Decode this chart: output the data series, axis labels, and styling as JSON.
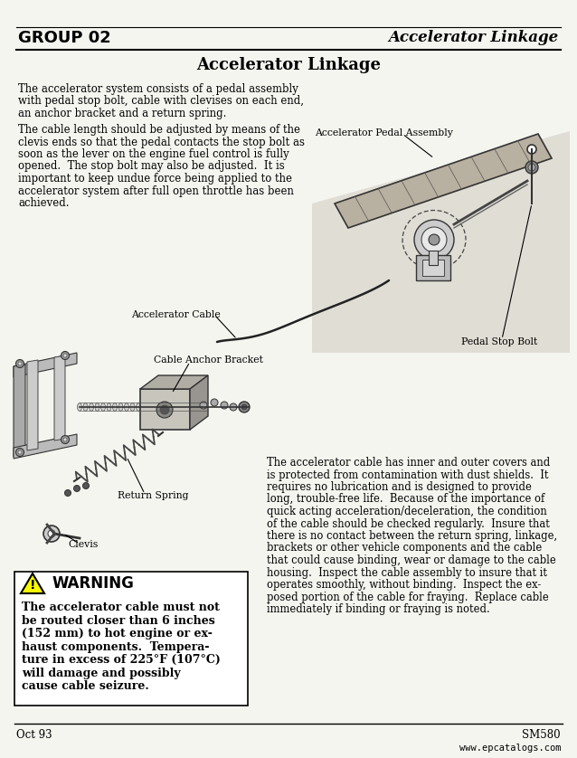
{
  "title": "Accelerator Linkage",
  "header_left": "GROUP 02",
  "header_right": "Accelerator Linkage",
  "footer_left": "Oct 93",
  "footer_right": "SM580",
  "footer_url": "www.epcatalogs.com",
  "bg_color": "#f5f5f0",
  "text_color": "#1a1a1a",
  "para1_lines": [
    "The accelerator system consists of a pedal assembly",
    "with pedal stop bolt, cable with clevises on each end,",
    "an anchor bracket and a return spring."
  ],
  "para2_lines": [
    "The cable length should be adjusted by means of the",
    "clevis ends so that the pedal contacts the stop bolt as",
    "soon as the lever on the engine fuel control is fully",
    "opened.  The stop bolt may also be adjusted.  It is",
    "important to keep undue force being applied to the",
    "accelerator system after full open throttle has been",
    "achieved."
  ],
  "para3_lines": [
    "The accelerator cable has inner and outer covers and",
    "is protected from contamination with dust shields.  It",
    "requires no lubrication and is designed to provide",
    "long, trouble-free life.  Because of the importance of",
    "quick acting acceleration/deceleration, the condition",
    "of the cable should be checked regularly.  Insure that",
    "there is no contact between the return spring, linkage,",
    "brackets or other vehicle components and the cable",
    "that could cause binding, wear or damage to the cable",
    "housing.  Inspect the cable assembly to insure that it",
    "operates smoothly, without binding.  Inspect the ex-",
    "posed portion of the cable for fraying.  Replace cable",
    "immediately if binding or fraying is noted."
  ],
  "warning_title": "WARNING",
  "warning_lines": [
    "The accelerator cable must not",
    "be routed closer than 6 inches",
    "(152 mm) to hot engine or ex-",
    "haust components.  Tempera-",
    "ture in excess of 225°F (107°C)",
    "will damage and possibly",
    "cause cable seizure."
  ],
  "label_pedal_assembly": "Accelerator Pedal Assembly",
  "label_cable": "Accelerator Cable",
  "label_pedal_stop_bolt": "Pedal Stop Bolt",
  "label_cable_anchor": "Cable Anchor Bracket",
  "label_return_spring": "Return Spring",
  "label_clevis": "Clevis"
}
